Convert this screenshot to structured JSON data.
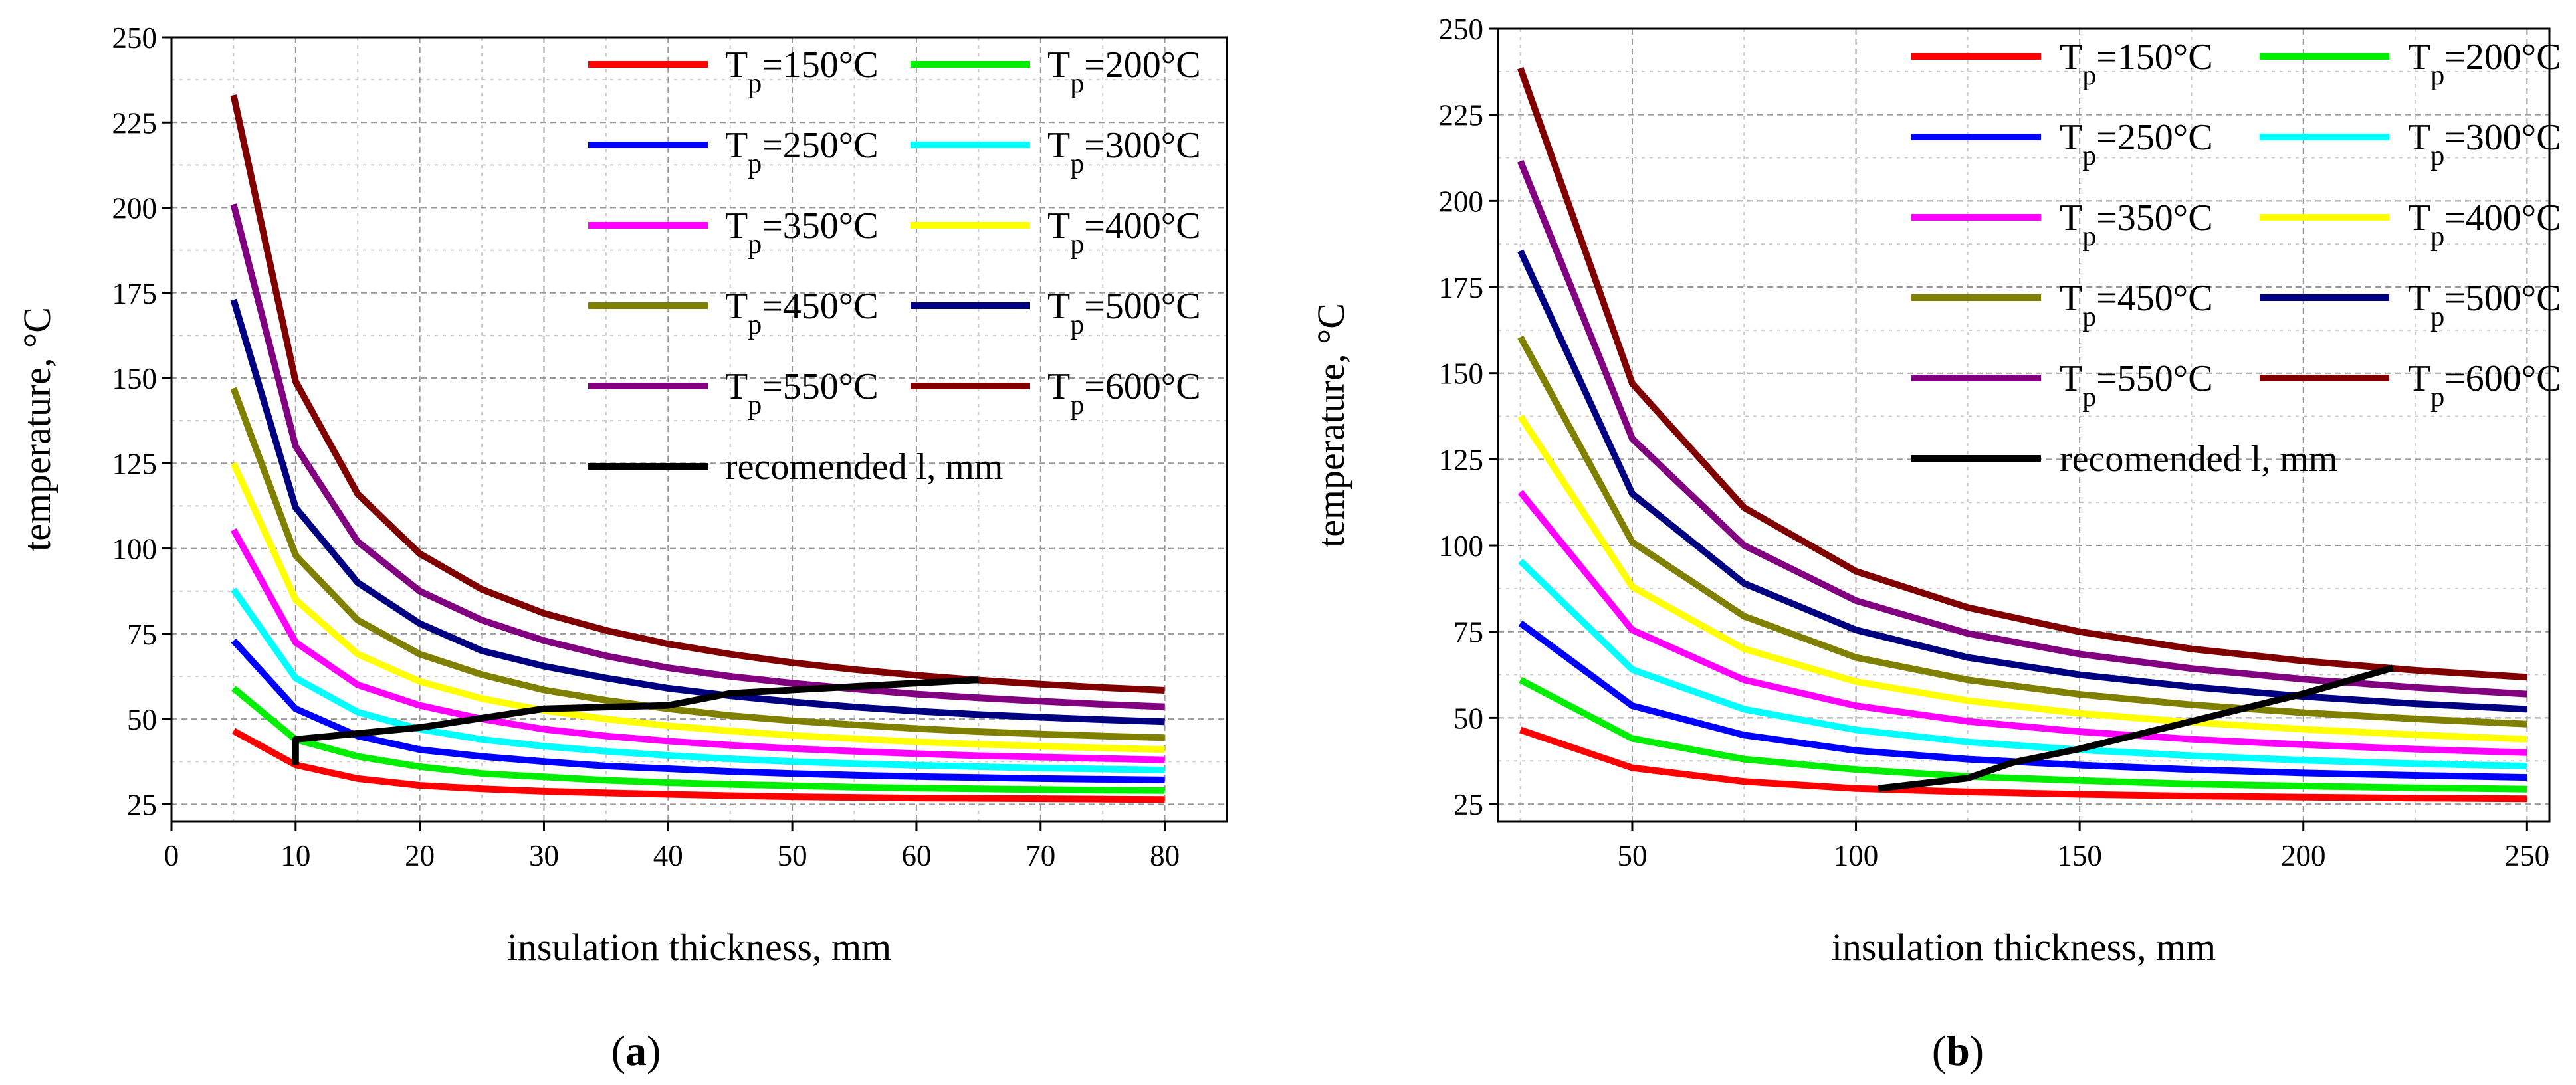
{
  "chart_data": [
    {
      "type": "line",
      "panel_label": "a",
      "xlabel": "insulation thickness, mm",
      "ylabel": "temperature, °C",
      "xlim": [
        0,
        85
      ],
      "ylim": [
        20,
        250
      ],
      "xticks": [
        0,
        10,
        20,
        30,
        40,
        50,
        60,
        70,
        80
      ],
      "yticks": [
        25,
        50,
        75,
        100,
        125,
        150,
        175,
        200,
        225,
        250
      ],
      "x": [
        5,
        10,
        15,
        20,
        25,
        30,
        35,
        40,
        45,
        50,
        55,
        60,
        65,
        70,
        75,
        80
      ],
      "series": [
        {
          "sub": "p",
          "name": "=150°C",
          "color": "#ff0000",
          "values": [
            46.5,
            36.5,
            32.5,
            30.5,
            29.5,
            28.8,
            28.3,
            27.9,
            27.5,
            27.2,
            27.0,
            26.8,
            26.7,
            26.6,
            26.5,
            26.4
          ]
        },
        {
          "sub": "p",
          "name": "=200°C",
          "color": "#00ee00",
          "values": [
            59,
            44,
            39,
            36,
            34,
            33,
            32,
            31.3,
            30.8,
            30.4,
            30.0,
            29.7,
            29.5,
            29.3,
            29.1,
            29.0
          ]
        },
        {
          "sub": "p",
          "name": "=250°C",
          "color": "#0000ff",
          "values": [
            73,
            53,
            45,
            41,
            39,
            37.5,
            36.2,
            35.4,
            34.6,
            34.0,
            33.5,
            33.1,
            32.8,
            32.5,
            32.3,
            32.1
          ]
        },
        {
          "sub": "p",
          "name": "=300°C",
          "color": "#00ffff",
          "values": [
            88,
            62,
            52,
            47,
            44,
            42,
            40.5,
            39.3,
            38.3,
            37.5,
            36.9,
            36.4,
            36.0,
            35.6,
            35.3,
            35.0
          ]
        },
        {
          "sub": "p",
          "name": "=350°C",
          "color": "#ff00ff",
          "values": [
            105.5,
            72.5,
            60,
            54,
            50,
            47,
            45,
            43.5,
            42.3,
            41.3,
            40.5,
            39.8,
            39.2,
            38.8,
            38.4,
            38.0
          ]
        },
        {
          "sub": "p",
          "name": "=400°C",
          "color": "#ffff00",
          "values": [
            125,
            85,
            69,
            61,
            56,
            52.5,
            50,
            48,
            46.5,
            45.2,
            44.2,
            43.3,
            42.6,
            42.0,
            41.5,
            41.0
          ]
        },
        {
          "sub": "p",
          "name": "=450°C",
          "color": "#808000",
          "values": [
            147,
            98,
            79,
            69,
            63,
            58.5,
            55.5,
            53,
            51,
            49.5,
            48.3,
            47.2,
            46.3,
            45.6,
            45.0,
            44.5
          ]
        },
        {
          "sub": "p",
          "name": "=500°C",
          "color": "#000080",
          "values": [
            173,
            112,
            90,
            78,
            70,
            65.5,
            62,
            59,
            56.8,
            55,
            53.5,
            52.3,
            51.3,
            50.5,
            49.8,
            49.2
          ]
        },
        {
          "sub": "p",
          "name": "=550°C",
          "color": "#800080",
          "values": [
            201,
            130,
            102,
            87.5,
            79,
            73,
            68.5,
            65,
            62.5,
            60.5,
            58.8,
            57.3,
            56.2,
            55.2,
            54.3,
            53.6
          ]
        },
        {
          "sub": "p",
          "name": "=600°C",
          "color": "#800000",
          "values": [
            233,
            149,
            116,
            98.5,
            88,
            81,
            76,
            72,
            69,
            66.5,
            64.5,
            62.8,
            61.4,
            60.2,
            59.2,
            58.4
          ]
        }
      ],
      "recommended": {
        "name": "recomended l, mm",
        "color": "#000000",
        "x": [
          10,
          10,
          20,
          30,
          40,
          45,
          55,
          65
        ],
        "y": [
          36.5,
          44,
          47.5,
          53,
          54,
          57.5,
          59.5,
          61.5
        ]
      },
      "legend": "top-right"
    },
    {
      "type": "line",
      "panel_label": "b",
      "xlabel": "insulation thickness, mm",
      "ylabel": "temperature, °C",
      "xlim": [
        20,
        255
      ],
      "ylim": [
        20,
        250
      ],
      "xticks": [
        50,
        100,
        150,
        200,
        250
      ],
      "yticks": [
        25,
        50,
        75,
        100,
        125,
        150,
        175,
        200,
        225,
        250
      ],
      "x": [
        25,
        50,
        75,
        100,
        125,
        150,
        175,
        200,
        225,
        250
      ],
      "series": [
        {
          "sub": "p",
          "name": "=150°C",
          "color": "#ff0000",
          "values": [
            46.5,
            35.5,
            31.5,
            29.5,
            28.5,
            27.8,
            27.3,
            27.0,
            26.7,
            26.5
          ]
        },
        {
          "sub": "p",
          "name": "=200°C",
          "color": "#00ee00",
          "values": [
            61,
            44,
            38,
            35,
            33,
            31.8,
            30.8,
            30.2,
            29.7,
            29.3
          ]
        },
        {
          "sub": "p",
          "name": "=250°C",
          "color": "#0000ff",
          "values": [
            77.5,
            53.5,
            45,
            40.5,
            38,
            36.3,
            35.0,
            34.0,
            33.3,
            32.7
          ]
        },
        {
          "sub": "p",
          "name": "=300°C",
          "color": "#00ffff",
          "values": [
            95.5,
            64,
            52.5,
            46.5,
            43,
            40.7,
            39.0,
            37.7,
            36.7,
            36.0
          ]
        },
        {
          "sub": "p",
          "name": "=350°C",
          "color": "#ff00ff",
          "values": [
            115.5,
            75.5,
            61,
            53.5,
            49,
            46,
            43.8,
            42.2,
            40.9,
            39.9
          ]
        },
        {
          "sub": "p",
          "name": "=400°C",
          "color": "#ffff00",
          "values": [
            137.5,
            88,
            70,
            60.5,
            55,
            51.3,
            48.7,
            46.7,
            45.1,
            43.8
          ]
        },
        {
          "sub": "p",
          "name": "=450°C",
          "color": "#808000",
          "values": [
            160.5,
            101,
            79.5,
            67.5,
            61,
            56.8,
            53.8,
            51.5,
            49.7,
            48.2
          ]
        },
        {
          "sub": "p",
          "name": "=500°C",
          "color": "#000080",
          "values": [
            185.5,
            115,
            89,
            75.5,
            67.5,
            62.5,
            59,
            56.2,
            54.1,
            52.5
          ]
        },
        {
          "sub": "p",
          "name": "=550°C",
          "color": "#800080",
          "values": [
            211.5,
            131,
            100,
            84,
            74.5,
            68.5,
            64.3,
            61.2,
            58.8,
            56.9
          ]
        },
        {
          "sub": "p",
          "name": "=600°C",
          "color": "#800000",
          "values": [
            238.5,
            147,
            111,
            92.5,
            82,
            75,
            70,
            66.5,
            63.8,
            61.8
          ]
        }
      ],
      "recommended": {
        "name": "recomended l, mm",
        "color": "#000000",
        "x": [
          105,
          125,
          135,
          150,
          175,
          200,
          220
        ],
        "y": [
          29.5,
          32.5,
          37,
          41,
          49,
          57,
          64.5
        ]
      },
      "legend": "top-right"
    }
  ]
}
